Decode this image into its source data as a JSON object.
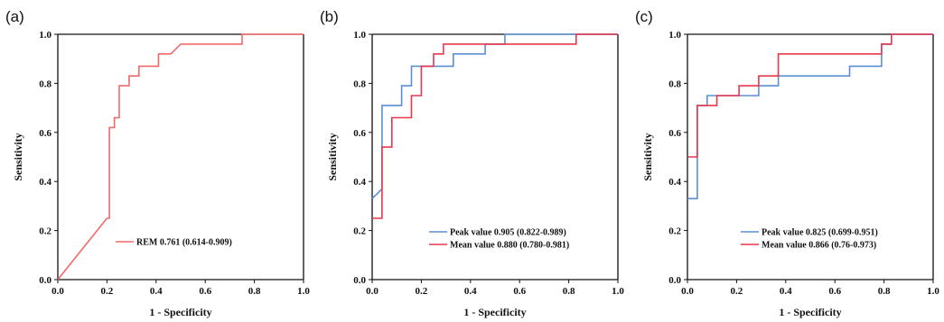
{
  "chart_data": [
    {
      "type": "line",
      "panel_label": "(a)",
      "xlabel": "1 - Specificity",
      "ylabel": "Sensitivity",
      "xlim": [
        0,
        1
      ],
      "ylim": [
        0,
        1
      ],
      "ticks": [
        "0.0",
        "0.2",
        "0.4",
        "0.6",
        "0.8",
        "1.0"
      ],
      "legend_position": "lower-right",
      "series": [
        {
          "name": "REM 0.761 (0.614-0.909)",
          "color": "#f06a6a",
          "points": [
            [
              0,
              0
            ],
            [
              0.2,
              0.25
            ],
            [
              0.21,
              0.25
            ],
            [
              0.21,
              0.62
            ],
            [
              0.23,
              0.62
            ],
            [
              0.23,
              0.66
            ],
            [
              0.25,
              0.66
            ],
            [
              0.25,
              0.79
            ],
            [
              0.29,
              0.79
            ],
            [
              0.29,
              0.83
            ],
            [
              0.33,
              0.83
            ],
            [
              0.33,
              0.87
            ],
            [
              0.41,
              0.87
            ],
            [
              0.41,
              0.92
            ],
            [
              0.46,
              0.92
            ],
            [
              0.5,
              0.96
            ],
            [
              0.75,
              0.96
            ],
            [
              0.75,
              1
            ],
            [
              1,
              1
            ]
          ]
        }
      ]
    },
    {
      "type": "line",
      "panel_label": "(b)",
      "xlabel": "1 - Specificity",
      "ylabel": "Sensitivity",
      "xlim": [
        0,
        1
      ],
      "ylim": [
        0,
        1
      ],
      "ticks": [
        "0.0",
        "0.2",
        "0.4",
        "0.6",
        "0.8",
        "1.0"
      ],
      "legend_position": "lower-right",
      "series": [
        {
          "name": "Peak value 0.905 (0.822-0.989)",
          "color": "#5b8fd4",
          "points": [
            [
              0,
              0.33
            ],
            [
              0.04,
              0.37
            ],
            [
              0.04,
              0.71
            ],
            [
              0.12,
              0.71
            ],
            [
              0.12,
              0.79
            ],
            [
              0.16,
              0.79
            ],
            [
              0.16,
              0.87
            ],
            [
              0.33,
              0.87
            ],
            [
              0.33,
              0.92
            ],
            [
              0.46,
              0.92
            ],
            [
              0.46,
              0.96
            ],
            [
              0.54,
              0.96
            ],
            [
              0.54,
              1
            ],
            [
              1,
              1
            ]
          ]
        },
        {
          "name": "Mean value 0.880 (0.780-0.981)",
          "color": "#e8374a",
          "points": [
            [
              0,
              0.25
            ],
            [
              0.04,
              0.25
            ],
            [
              0.04,
              0.54
            ],
            [
              0.08,
              0.54
            ],
            [
              0.08,
              0.66
            ],
            [
              0.16,
              0.66
            ],
            [
              0.16,
              0.75
            ],
            [
              0.2,
              0.75
            ],
            [
              0.2,
              0.87
            ],
            [
              0.25,
              0.87
            ],
            [
              0.25,
              0.92
            ],
            [
              0.29,
              0.92
            ],
            [
              0.29,
              0.96
            ],
            [
              0.83,
              0.96
            ],
            [
              0.83,
              1
            ],
            [
              1,
              1
            ]
          ]
        }
      ]
    },
    {
      "type": "line",
      "panel_label": "(c)",
      "xlabel": "1 - Specificity",
      "ylabel": "Sensitivity",
      "xlim": [
        0,
        1
      ],
      "ylim": [
        0,
        1
      ],
      "ticks": [
        "0.0",
        "0.2",
        "0.4",
        "0.6",
        "0.8",
        "1.0"
      ],
      "legend_position": "lower-right",
      "series": [
        {
          "name": "Peak value 0.825 (0.699-0.951)",
          "color": "#5b8fd4",
          "points": [
            [
              0,
              0.33
            ],
            [
              0.04,
              0.33
            ],
            [
              0.04,
              0.71
            ],
            [
              0.08,
              0.71
            ],
            [
              0.08,
              0.75
            ],
            [
              0.29,
              0.75
            ],
            [
              0.29,
              0.79
            ],
            [
              0.37,
              0.79
            ],
            [
              0.37,
              0.83
            ],
            [
              0.66,
              0.83
            ],
            [
              0.66,
              0.87
            ],
            [
              0.79,
              0.87
            ],
            [
              0.79,
              0.96
            ],
            [
              0.83,
              0.96
            ],
            [
              0.83,
              1
            ],
            [
              1,
              1
            ]
          ]
        },
        {
          "name": "Mean value 0.866 (0.76-0.973)",
          "color": "#e8374a",
          "points": [
            [
              0,
              0.5
            ],
            [
              0.04,
              0.5
            ],
            [
              0.04,
              0.71
            ],
            [
              0.12,
              0.71
            ],
            [
              0.12,
              0.75
            ],
            [
              0.21,
              0.75
            ],
            [
              0.21,
              0.79
            ],
            [
              0.29,
              0.79
            ],
            [
              0.29,
              0.83
            ],
            [
              0.37,
              0.83
            ],
            [
              0.37,
              0.92
            ],
            [
              0.79,
              0.92
            ],
            [
              0.79,
              0.96
            ],
            [
              0.83,
              0.96
            ],
            [
              0.83,
              1
            ],
            [
              1,
              1
            ]
          ]
        }
      ]
    }
  ]
}
